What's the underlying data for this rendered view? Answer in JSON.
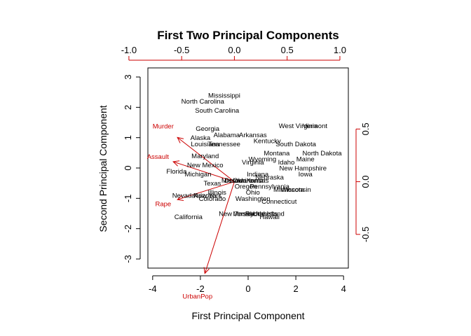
{
  "chart_data": {
    "type": "scatter",
    "title": "First Two Principal Components",
    "xlabel": "First Principal Component",
    "ylabel": "Second Principal Component",
    "xlim": [
      -4.2,
      4.2
    ],
    "ylim": [
      -3.3,
      3.3
    ],
    "x_ticks": [
      "-4",
      "-2",
      "0",
      "2",
      "4"
    ],
    "y_ticks": [
      "-3",
      "-2",
      "-1",
      "0",
      "1",
      "2",
      "3"
    ],
    "x_ticks_values": [
      -4,
      -2,
      0,
      2,
      4
    ],
    "y_ticks_values": [
      -3,
      -2,
      -1,
      0,
      1,
      2,
      3
    ],
    "top_ticks": [
      "-1.0",
      "-0.5",
      "0.0",
      "0.5",
      "1.0"
    ],
    "top_ticks_values": [
      -1.0,
      -0.5,
      0.0,
      0.5,
      1.0
    ],
    "right_ticks": [
      "-0.5",
      "0.0",
      "0.5"
    ],
    "right_ticks_values": [
      -0.5,
      0.0,
      0.5
    ],
    "loading_lim": [
      -0.82,
      1.08
    ],
    "loading_color": "#cc0000",
    "point_color": "#000000",
    "states": [
      {
        "name": "Mississippi",
        "x": -1.0,
        "y": 2.4
      },
      {
        "name": "North Carolina",
        "x": -1.9,
        "y": 2.2
      },
      {
        "name": "South Carolina",
        "x": -1.3,
        "y": 1.9
      },
      {
        "name": "Georgia",
        "x": -1.7,
        "y": 1.3
      },
      {
        "name": "Alabama",
        "x": -0.9,
        "y": 1.1
      },
      {
        "name": "Arkansas",
        "x": 0.2,
        "y": 1.1
      },
      {
        "name": "Alaska",
        "x": -2.0,
        "y": 1.0
      },
      {
        "name": "Louisiana",
        "x": -1.8,
        "y": 0.8
      },
      {
        "name": "Tennessee",
        "x": -1.0,
        "y": 0.8
      },
      {
        "name": "Kentucky",
        "x": 0.8,
        "y": 0.9
      },
      {
        "name": "West Virginia",
        "x": 2.1,
        "y": 1.4
      },
      {
        "name": "Vermont",
        "x": 2.8,
        "y": 1.4
      },
      {
        "name": "South Dakota",
        "x": 2.0,
        "y": 0.8
      },
      {
        "name": "Montana",
        "x": 1.2,
        "y": 0.5
      },
      {
        "name": "North Dakota",
        "x": 3.1,
        "y": 0.5
      },
      {
        "name": "Maine",
        "x": 2.4,
        "y": 0.3
      },
      {
        "name": "Wyoming",
        "x": 0.6,
        "y": 0.3
      },
      {
        "name": "Maryland",
        "x": -1.8,
        "y": 0.4
      },
      {
        "name": "Virginia",
        "x": 0.2,
        "y": 0.2
      },
      {
        "name": "Idaho",
        "x": 1.6,
        "y": 0.2
      },
      {
        "name": "New Hampshire",
        "x": 2.3,
        "y": 0.0
      },
      {
        "name": "New Mexico",
        "x": -1.8,
        "y": 0.1
      },
      {
        "name": "Florida",
        "x": -3.0,
        "y": -0.1
      },
      {
        "name": "Michigan",
        "x": -2.1,
        "y": -0.2
      },
      {
        "name": "Indiana",
        "x": 0.4,
        "y": -0.2
      },
      {
        "name": "Nebraska",
        "x": 0.9,
        "y": -0.3
      },
      {
        "name": "Iowa",
        "x": 2.4,
        "y": -0.2
      },
      {
        "name": "Missouri",
        "x": -0.6,
        "y": -0.4
      },
      {
        "name": "Oklahoma",
        "x": 0.0,
        "y": -0.4
      },
      {
        "name": "Delaware",
        "x": -0.4,
        "y": -0.4
      },
      {
        "name": "Kansas",
        "x": 0.4,
        "y": -0.4
      },
      {
        "name": "Texas",
        "x": -1.5,
        "y": -0.5
      },
      {
        "name": "Oregon",
        "x": -0.1,
        "y": -0.6
      },
      {
        "name": "Pennsylvania",
        "x": 0.9,
        "y": -0.6
      },
      {
        "name": "Minnesota",
        "x": 1.7,
        "y": -0.7
      },
      {
        "name": "Wisconsin",
        "x": 2.0,
        "y": -0.7
      },
      {
        "name": "Ohio",
        "x": 0.2,
        "y": -0.8
      },
      {
        "name": "Illinois",
        "x": -1.3,
        "y": -0.8
      },
      {
        "name": "Nevada",
        "x": -2.7,
        "y": -0.9
      },
      {
        "name": "Arizona",
        "x": -1.8,
        "y": -0.9
      },
      {
        "name": "New York",
        "x": -1.7,
        "y": -0.9
      },
      {
        "name": "Colorado",
        "x": -1.5,
        "y": -1.0
      },
      {
        "name": "Washington",
        "x": 0.2,
        "y": -1.0
      },
      {
        "name": "Connecticut",
        "x": 1.3,
        "y": -1.1
      },
      {
        "name": "California",
        "x": -2.5,
        "y": -1.6
      },
      {
        "name": "New Jersey",
        "x": -0.5,
        "y": -1.5
      },
      {
        "name": "Massachusetts",
        "x": 0.3,
        "y": -1.5
      },
      {
        "name": "Utah",
        "x": 0.5,
        "y": -1.5
      },
      {
        "name": "Rhode Island",
        "x": 0.7,
        "y": -1.5
      },
      {
        "name": "Hawaii",
        "x": 0.9,
        "y": -1.6
      }
    ],
    "loadings": [
      {
        "name": "Murder",
        "x": -0.54,
        "y": 0.42
      },
      {
        "name": "Assault",
        "x": -0.58,
        "y": 0.19
      },
      {
        "name": "UrbanPop",
        "x": -0.28,
        "y": -0.87
      },
      {
        "name": "Rape",
        "x": -0.54,
        "y": -0.17
      }
    ]
  }
}
